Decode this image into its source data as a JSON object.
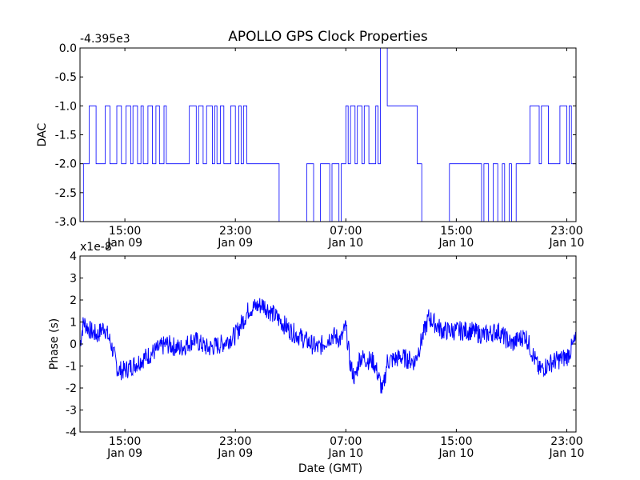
{
  "figure": {
    "title": "APOLLO GPS Clock Properties"
  },
  "chart_data": [
    {
      "type": "line",
      "ylabel": "DAC",
      "xlabel": "",
      "y_offset_label": "-4.395e3",
      "ylim": [
        -3.0,
        0.0
      ],
      "yticks": [
        "0.0",
        "-0.5",
        "-1.0",
        "-1.5",
        "-2.0",
        "-2.5",
        "-3.0"
      ],
      "xticks": [
        {
          "time": "15:00",
          "date": "Jan 09"
        },
        {
          "time": "23:00",
          "date": "Jan 09"
        },
        {
          "time": "07:00",
          "date": "Jan 10"
        },
        {
          "time": "15:00",
          "date": "Jan 10"
        },
        {
          "time": "23:00",
          "date": "Jan 10"
        }
      ],
      "xlim": [
        "Jan 09 11:45",
        "Jan 10 23:40"
      ],
      "grid": false,
      "line_color": "#0000ff",
      "series": [
        {
          "x": [
            "Jan 09 11:45",
            "Jan 09 12:00",
            "Jan 09 12:05",
            "Jan 09 12:25",
            "Jan 09 12:35",
            "Jan 09 12:55",
            "Jan 09 13:00",
            "Jan 09 13:25",
            "Jan 09 13:35",
            "Jan 09 13:55",
            "Jan 09 14:05",
            "Jan 09 14:25",
            "Jan 09 14:45",
            "Jan 09 15:05",
            "Jan 09 15:25",
            "Jan 09 15:35",
            "Jan 09 15:55",
            "Jan 09 16:10",
            "Jan 09 16:20",
            "Jan 09 16:40",
            "Jan 09 17:00",
            "Jan 09 17:15",
            "Jan 09 17:30",
            "Jan 09 17:50",
            "Jan 09 18:00",
            "Jan 09 18:10",
            "Jan 09 19:30",
            "Jan 09 19:40",
            "Jan 09 20:10",
            "Jan 09 20:20",
            "Jan 09 20:40",
            "Jan 09 20:55",
            "Jan 09 21:20",
            "Jan 09 21:30",
            "Jan 09 21:40",
            "Jan 09 21:55",
            "Jan 09 22:10",
            "Jan 09 22:30",
            "Jan 09 22:40",
            "Jan 09 23:00",
            "Jan 09 23:15",
            "Jan 09 23:25",
            "Jan 09 23:35",
            "Jan 09 23:50",
            "Jan 10 00:00",
            "Jan 10 02:00",
            "Jan 10 02:10",
            "Jan 10 04:00",
            "Jan 10 04:10",
            "Jan 10 04:30",
            "Jan 10 04:40",
            "Jan 10 05:10",
            "Jan 10 05:20",
            "Jan 10 05:50",
            "Jan 10 06:00",
            "Jan 10 06:20",
            "Jan 10 06:30",
            "Jan 10 06:40",
            "Jan 10 07:00",
            "Jan 10 07:10",
            "Jan 10 07:20",
            "Jan 10 07:40",
            "Jan 10 07:50",
            "Jan 10 08:10",
            "Jan 10 08:20",
            "Jan 10 08:40",
            "Jan 10 09:10",
            "Jan 10 09:20",
            "Jan 10 09:30",
            "Jan 10 10:00",
            "Jan 10 10:15",
            "Jan 10 10:20",
            "Jan 10 12:00",
            "Jan 10 12:10",
            "Jan 10 12:20",
            "Jan 10 12:30",
            "Jan 10 14:30",
            "Jan 10 14:40",
            "Jan 10 15:00",
            "Jan 10 15:10",
            "Jan 10 16:40",
            "Jan 10 16:50",
            "Jan 10 17:00",
            "Jan 10 17:20",
            "Jan 10 17:40",
            "Jan 10 18:00",
            "Jan 10 18:20",
            "Jan 10 18:30",
            "Jan 10 18:50",
            "Jan 10 19:00",
            "Jan 10 19:20",
            "Jan 10 19:40",
            "Jan 10 20:10",
            "Jan 10 20:20",
            "Jan 10 21:00",
            "Jan 10 21:10",
            "Jan 10 21:40",
            "Jan 10 22:00",
            "Jan 10 22:20",
            "Jan 10 22:30",
            "Jan 10 23:00",
            "Jan 10 23:10",
            "Jan 10 23:20",
            "Jan 10 23:40"
          ],
          "y": [
            -3.0,
            -2.0,
            -2.0,
            -1.0,
            -1.0,
            -2.0,
            -2.0,
            -2.0,
            -1.0,
            -2.0,
            -2.0,
            -1.0,
            -2.0,
            -1.0,
            -2.0,
            -1.0,
            -2.0,
            -1.0,
            -2.0,
            -1.0,
            -2.0,
            -1.0,
            -2.0,
            -1.0,
            -2.0,
            -2.0,
            -2.0,
            -1.0,
            -2.0,
            -1.0,
            -2.0,
            -1.0,
            -2.0,
            -1.0,
            -2.0,
            -1.0,
            -2.0,
            -2.0,
            -1.0,
            -2.0,
            -1.0,
            -2.0,
            -1.0,
            -2.0,
            -2.0,
            -2.0,
            -3.0,
            -3.0,
            -2.0,
            -2.0,
            -3.0,
            -2.0,
            -2.0,
            -3.0,
            -2.0,
            -2.0,
            -3.0,
            -2.0,
            -1.0,
            -2.0,
            -1.0,
            -2.0,
            -1.0,
            -2.0,
            -1.0,
            -2.0,
            -1.0,
            -2.0,
            0.0,
            -1.0,
            -1.0,
            -1.0,
            -1.0,
            -2.0,
            -2.0,
            -3.0,
            -2.0,
            -2.0,
            -2.0,
            -2.0,
            -2.0,
            -3.0,
            -2.0,
            -3.0,
            -2.0,
            -3.0,
            -2.0,
            -3.0,
            -2.0,
            -3.0,
            -2.0,
            -2.0,
            -2.0,
            -1.0,
            -2.0,
            -1.0,
            -2.0,
            -2.0,
            -2.0,
            -1.0,
            -2.0,
            -1.0,
            -2.0,
            -2.0
          ]
        }
      ]
    },
    {
      "type": "line",
      "ylabel": "Phase (s)",
      "xlabel": "Date (GMT)",
      "y_offset_label": "x1e-8",
      "ylim": [
        -4,
        4
      ],
      "yticks": [
        "4",
        "3",
        "2",
        "1",
        "0",
        "-1",
        "-2",
        "-3",
        "-4"
      ],
      "xticks": [
        {
          "time": "15:00",
          "date": "Jan 09"
        },
        {
          "time": "23:00",
          "date": "Jan 09"
        },
        {
          "time": "07:00",
          "date": "Jan 10"
        },
        {
          "time": "15:00",
          "date": "Jan 10"
        },
        {
          "time": "23:00",
          "date": "Jan 10"
        }
      ],
      "xlim": [
        "Jan 09 11:45",
        "Jan 10 23:40"
      ],
      "grid": false,
      "line_color": "#0000ff",
      "series": [
        {
          "x": [
            "Jan 09 11:45",
            "Jan 09 12:00",
            "Jan 09 12:30",
            "Jan 09 13:00",
            "Jan 09 13:30",
            "Jan 09 14:00",
            "Jan 09 14:30",
            "Jan 09 15:00",
            "Jan 09 16:00",
            "Jan 09 17:00",
            "Jan 09 18:00",
            "Jan 09 19:00",
            "Jan 09 20:00",
            "Jan 09 21:00",
            "Jan 09 22:00",
            "Jan 09 23:00",
            "Jan 10 00:00",
            "Jan 10 01:00",
            "Jan 10 02:00",
            "Jan 10 03:00",
            "Jan 10 04:00",
            "Jan 10 05:00",
            "Jan 10 06:00",
            "Jan 10 06:40",
            "Jan 10 07:00",
            "Jan 10 07:20",
            "Jan 10 07:40",
            "Jan 10 08:00",
            "Jan 10 09:00",
            "Jan 10 09:20",
            "Jan 10 09:40",
            "Jan 10 10:00",
            "Jan 10 11:00",
            "Jan 10 12:00",
            "Jan 10 13:00",
            "Jan 10 14:00",
            "Jan 10 15:00",
            "Jan 10 16:00",
            "Jan 10 17:00",
            "Jan 10 18:00",
            "Jan 10 19:00",
            "Jan 10 20:00",
            "Jan 10 21:00",
            "Jan 10 22:00",
            "Jan 10 23:00",
            "Jan 10 23:40"
          ],
          "y": [
            0.0,
            1.0,
            0.6,
            0.4,
            0.8,
            0.0,
            -1.2,
            -1.2,
            -0.8,
            -0.4,
            0.0,
            -0.2,
            0.2,
            -0.2,
            0.0,
            0.4,
            1.6,
            1.8,
            1.2,
            0.6,
            0.2,
            -0.2,
            0.4,
            0.2,
            0.8,
            -1.0,
            -1.6,
            -0.6,
            -0.8,
            -1.4,
            -2.2,
            -0.8,
            -0.6,
            -0.8,
            1.2,
            0.6,
            0.6,
            0.6,
            0.4,
            0.6,
            0.0,
            0.4,
            -1.2,
            -0.8,
            -0.6,
            0.2
          ]
        }
      ]
    }
  ]
}
